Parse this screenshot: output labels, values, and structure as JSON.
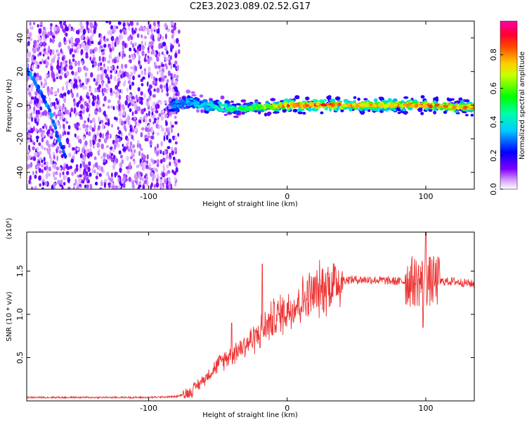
{
  "title": "C2E3.2023.089.02.52.G17",
  "chart_data": [
    {
      "type": "heatmap",
      "xlabel": "Height of straight line (km)",
      "ylabel": "Frequency (Hz)",
      "xlim": [
        -188,
        135
      ],
      "ylim": [
        -50,
        50
      ],
      "x_ticks": [
        -100,
        0,
        100
      ],
      "y_ticks": [
        -40,
        -20,
        0,
        20,
        40
      ],
      "colorbar": {
        "label": "Normalized spectral amplitude",
        "range": [
          0,
          1
        ],
        "ticks": [
          0.0,
          0.2,
          0.4,
          0.6,
          0.8
        ],
        "colormap": [
          "#ffffff",
          "#8000ff",
          "#0000ff",
          "#00ffff",
          "#00ff00",
          "#ffff00",
          "#ff8000",
          "#ff0000",
          "#ff00ff"
        ]
      },
      "noise_region_x": [
        -188,
        -78
      ],
      "diagonal_trace": [
        {
          "x": -188,
          "y": 22
        },
        {
          "x": -178,
          "y": 8
        },
        {
          "x": -172,
          "y": -2
        },
        {
          "x": -168,
          "y": -12
        },
        {
          "x": -164,
          "y": -22
        },
        {
          "x": -160,
          "y": -31
        }
      ],
      "main_trace": [
        {
          "x": -85,
          "y": -1,
          "amp": 0.3
        },
        {
          "x": -70,
          "y": 2,
          "amp": 0.35
        },
        {
          "x": -60,
          "y": 0,
          "amp": 0.4
        },
        {
          "x": -50,
          "y": -1,
          "amp": 0.45
        },
        {
          "x": -40,
          "y": -2,
          "amp": 0.5
        },
        {
          "x": -30,
          "y": -2,
          "amp": 0.55
        },
        {
          "x": -20,
          "y": -1,
          "amp": 0.65
        },
        {
          "x": -10,
          "y": -1,
          "amp": 0.75
        },
        {
          "x": 0,
          "y": 0,
          "amp": 0.85
        },
        {
          "x": 20,
          "y": 0,
          "amp": 0.9
        },
        {
          "x": 40,
          "y": 0,
          "amp": 0.85
        },
        {
          "x": 60,
          "y": 0,
          "amp": 0.8
        },
        {
          "x": 80,
          "y": 0,
          "amp": 0.8
        },
        {
          "x": 100,
          "y": 0,
          "amp": 0.85
        },
        {
          "x": 120,
          "y": -1,
          "amp": 0.8
        },
        {
          "x": 135,
          "y": -1,
          "amp": 0.8
        }
      ]
    },
    {
      "type": "line",
      "xlabel": "Height of straight line (km)",
      "ylabel": "SNR (10 * v/v)",
      "y_multiplier": "(x10⁴)",
      "xlim": [
        -188,
        135
      ],
      "ylim": [
        0,
        1.95
      ],
      "x_ticks": [
        -100,
        0,
        100
      ],
      "y_ticks": [
        0.5,
        1.0,
        1.5
      ],
      "color": "#ee3333",
      "series": [
        {
          "envelope": [
            {
              "x": -188,
              "y": 0.04
            },
            {
              "x": -100,
              "y": 0.04
            },
            {
              "x": -80,
              "y": 0.05
            },
            {
              "x": -70,
              "y": 0.1
            },
            {
              "x": -60,
              "y": 0.25
            },
            {
              "x": -50,
              "y": 0.42
            },
            {
              "x": -40,
              "y": 0.55
            },
            {
              "x": -30,
              "y": 0.65
            },
            {
              "x": -20,
              "y": 0.78
            },
            {
              "x": -10,
              "y": 0.95
            },
            {
              "x": 0,
              "y": 1.05
            },
            {
              "x": 10,
              "y": 1.15
            },
            {
              "x": 20,
              "y": 1.25
            },
            {
              "x": 30,
              "y": 1.35
            },
            {
              "x": 40,
              "y": 1.4
            },
            {
              "x": 60,
              "y": 1.4
            },
            {
              "x": 80,
              "y": 1.38
            },
            {
              "x": 100,
              "y": 1.38
            },
            {
              "x": 120,
              "y": 1.38
            },
            {
              "x": 135,
              "y": 1.35
            }
          ],
          "spikes": [
            {
              "x": -40,
              "y": 0.9
            },
            {
              "x": -18,
              "y": 1.58
            },
            {
              "x": 100,
              "y": 1.95
            },
            {
              "x": 98,
              "y": 0.85
            }
          ]
        }
      ]
    }
  ]
}
